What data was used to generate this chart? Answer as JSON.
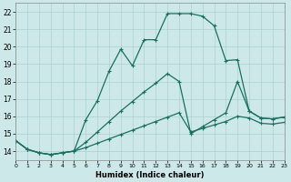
{
  "xlabel": "Humidex (Indice chaleur)",
  "background_color": "#cce8e8",
  "grid_color": "#aad0d0",
  "line_color": "#1a7060",
  "xlim": [
    0,
    23
  ],
  "ylim": [
    13.5,
    22.5
  ],
  "xticks": [
    0,
    1,
    2,
    3,
    4,
    5,
    6,
    7,
    8,
    9,
    10,
    11,
    12,
    13,
    14,
    15,
    16,
    17,
    18,
    19,
    20,
    21,
    22,
    23
  ],
  "yticks": [
    14,
    15,
    16,
    17,
    18,
    19,
    20,
    21,
    22
  ],
  "line1": {
    "x": [
      0,
      1,
      2,
      3,
      4,
      5,
      6,
      7,
      8,
      9,
      10,
      11,
      12,
      13,
      14,
      15,
      16,
      17,
      18,
      19,
      20,
      21,
      22,
      23
    ],
    "y": [
      14.6,
      14.1,
      13.9,
      13.8,
      13.9,
      14.0,
      15.8,
      16.9,
      18.6,
      19.85,
      18.9,
      20.4,
      20.4,
      21.9,
      21.9,
      21.9,
      21.75,
      21.2,
      19.2,
      19.25,
      16.3,
      15.9,
      15.85,
      15.95
    ]
  },
  "line2": {
    "x": [
      0,
      1,
      2,
      3,
      4,
      5,
      6,
      7,
      8,
      9,
      10,
      11,
      12,
      13,
      14,
      15,
      16,
      17,
      18,
      19,
      20,
      21,
      22,
      23
    ],
    "y": [
      14.6,
      14.1,
      13.9,
      13.8,
      13.9,
      14.0,
      14.5,
      15.1,
      15.7,
      16.3,
      16.85,
      17.4,
      17.9,
      18.45,
      18.0,
      15.0,
      15.4,
      15.8,
      16.2,
      18.0,
      16.3,
      15.9,
      15.85,
      15.95
    ]
  },
  "line3": {
    "x": [
      0,
      1,
      2,
      3,
      4,
      5,
      6,
      7,
      8,
      9,
      10,
      11,
      12,
      13,
      14,
      15,
      16,
      17,
      18,
      19,
      20,
      21,
      22,
      23
    ],
    "y": [
      14.6,
      14.1,
      13.9,
      13.8,
      13.9,
      14.0,
      14.2,
      14.45,
      14.7,
      14.95,
      15.2,
      15.45,
      15.7,
      15.95,
      16.2,
      15.1,
      15.3,
      15.5,
      15.7,
      16.0,
      15.9,
      15.6,
      15.55,
      15.65
    ]
  }
}
